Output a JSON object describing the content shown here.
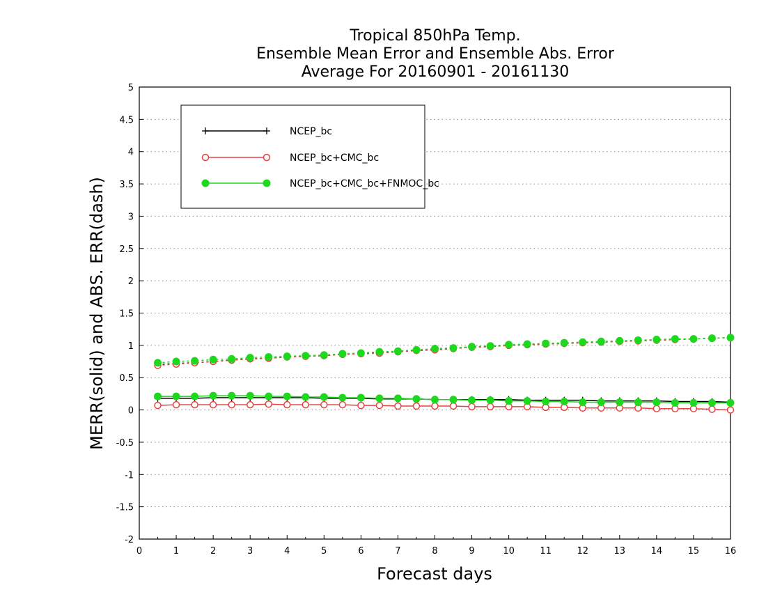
{
  "chart_data": {
    "type": "line",
    "title_lines": [
      "Tropical 850hPa Temp.",
      "Ensemble Mean Error and Ensemble Abs. Error",
      "Average For 20160901 - 20161130"
    ],
    "xlabel": "Forecast days",
    "ylabel": "MERR(solid) and ABS. ERR(dash)",
    "xlim": [
      0,
      16
    ],
    "ylim": [
      -2,
      5
    ],
    "x_ticks": [
      "0",
      "1",
      "2",
      "3",
      "4",
      "5",
      "6",
      "7",
      "8",
      "9",
      "10",
      "11",
      "12",
      "13",
      "14",
      "15",
      "16"
    ],
    "y_ticks": [
      "5",
      "4.5",
      "4",
      "3.5",
      "3",
      "2.5",
      "2",
      "1.5",
      "1",
      "0.5",
      "0",
      "-0.5",
      "-1",
      "-1.5",
      "-2"
    ],
    "y_tick_values": [
      5,
      4.5,
      4,
      3.5,
      3,
      2.5,
      2,
      1.5,
      1,
      0.5,
      0,
      -0.5,
      -1,
      -1.5,
      -2
    ],
    "grid": true,
    "legend_position": "top-left",
    "x": [
      0.5,
      1,
      1.5,
      2,
      2.5,
      3,
      3.5,
      4,
      4.5,
      5,
      5.5,
      6,
      6.5,
      7,
      7.5,
      8,
      8.5,
      9,
      9.5,
      10,
      10.5,
      11,
      11.5,
      12,
      12.5,
      13,
      13.5,
      14,
      14.5,
      15,
      15.5,
      16
    ],
    "series": [
      {
        "name": "NCEP_bc",
        "color": "#000000",
        "marker": "plus",
        "merr": [
          0.18,
          0.18,
          0.18,
          0.19,
          0.19,
          0.19,
          0.19,
          0.19,
          0.19,
          0.18,
          0.18,
          0.18,
          0.17,
          0.17,
          0.17,
          0.16,
          0.16,
          0.16,
          0.16,
          0.16,
          0.15,
          0.15,
          0.15,
          0.15,
          0.14,
          0.14,
          0.14,
          0.14,
          0.13,
          0.13,
          0.13,
          0.12
        ],
        "abs_err": [
          0.7,
          0.72,
          0.73,
          0.75,
          0.77,
          0.79,
          0.8,
          0.82,
          0.83,
          0.84,
          0.86,
          0.87,
          0.88,
          0.9,
          0.92,
          0.93,
          0.95,
          0.97,
          0.98,
          1.0,
          1.01,
          1.02,
          1.03,
          1.04,
          1.05,
          1.06,
          1.07,
          1.08,
          1.09,
          1.1,
          1.11,
          1.12
        ]
      },
      {
        "name": "NCEP_bc+CMC_bc",
        "color": "#e84040",
        "marker": "open-circle",
        "merr": [
          0.07,
          0.08,
          0.08,
          0.08,
          0.08,
          0.08,
          0.09,
          0.08,
          0.08,
          0.08,
          0.08,
          0.07,
          0.07,
          0.06,
          0.06,
          0.06,
          0.06,
          0.05,
          0.05,
          0.05,
          0.05,
          0.04,
          0.04,
          0.03,
          0.03,
          0.03,
          0.03,
          0.02,
          0.02,
          0.02,
          0.01,
          0.0
        ],
        "abs_err": [
          0.69,
          0.71,
          0.73,
          0.75,
          0.77,
          0.79,
          0.8,
          0.82,
          0.83,
          0.84,
          0.86,
          0.87,
          0.88,
          0.9,
          0.92,
          0.93,
          0.95,
          0.97,
          0.98,
          1.0,
          1.01,
          1.02,
          1.03,
          1.04,
          1.05,
          1.06,
          1.07,
          1.08,
          1.09,
          1.1,
          1.11,
          1.12
        ]
      },
      {
        "name": "NCEP_bc+CMC_bc+FNMOC_bc",
        "color": "#1ed81e",
        "marker": "filled-circle",
        "merr": [
          0.21,
          0.21,
          0.21,
          0.22,
          0.22,
          0.22,
          0.21,
          0.21,
          0.2,
          0.2,
          0.19,
          0.19,
          0.18,
          0.18,
          0.17,
          0.16,
          0.16,
          0.15,
          0.15,
          0.14,
          0.14,
          0.13,
          0.13,
          0.12,
          0.12,
          0.12,
          0.12,
          0.12,
          0.11,
          0.11,
          0.11,
          0.11
        ],
        "abs_err": [
          0.73,
          0.75,
          0.76,
          0.78,
          0.79,
          0.81,
          0.82,
          0.83,
          0.84,
          0.85,
          0.87,
          0.88,
          0.9,
          0.91,
          0.93,
          0.95,
          0.96,
          0.98,
          0.99,
          1.01,
          1.02,
          1.03,
          1.04,
          1.05,
          1.06,
          1.07,
          1.08,
          1.09,
          1.1,
          1.1,
          1.11,
          1.12
        ]
      }
    ]
  }
}
